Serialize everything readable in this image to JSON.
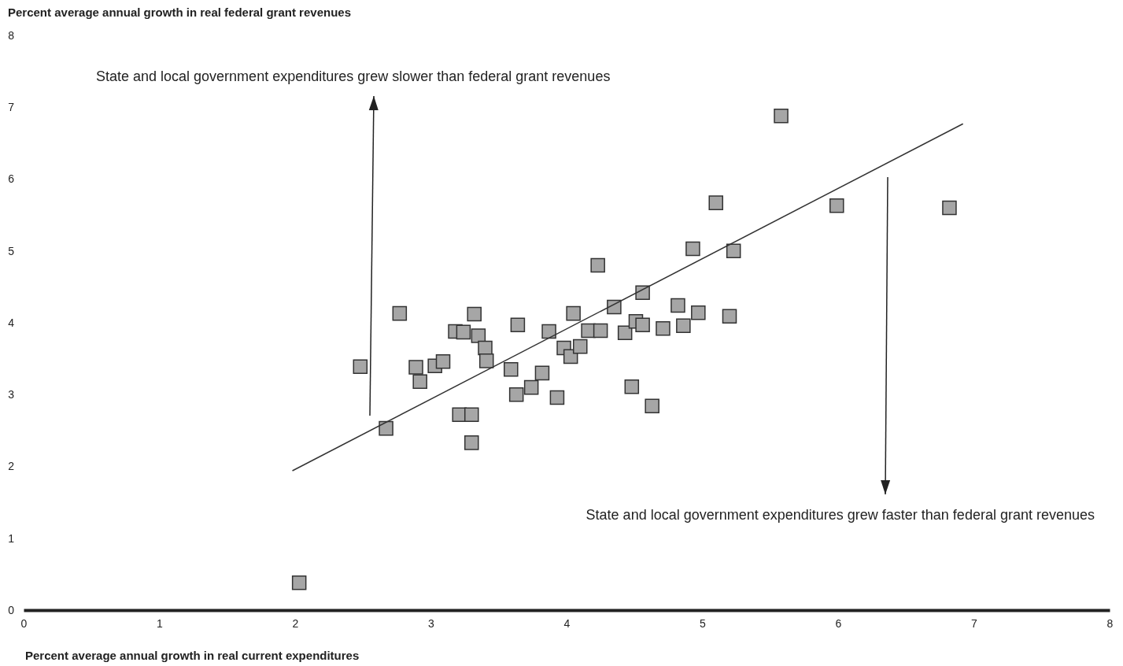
{
  "chart_data": {
    "type": "scatter",
    "xlabel": "Percent average annual growth in real current expenditures",
    "ylabel": "Percent average annual growth in real federal grant revenues",
    "xlim": [
      0,
      8
    ],
    "xticks": [
      0,
      1,
      2,
      3,
      4,
      5,
      6,
      7,
      8
    ],
    "ylim": [
      0,
      8
    ],
    "yticks": [
      0,
      1,
      2,
      3,
      4,
      5,
      6,
      7,
      8
    ],
    "grid": false,
    "annotations": [
      "State and local government expenditures grew slower than federal grant revenues",
      "State and local government expenditures grew faster than federal grant revenues"
    ],
    "series": [
      {
        "marker": "square",
        "color": "#a6a6a6",
        "x": [
          2.03,
          2.48,
          2.67,
          2.77,
          2.89,
          2.92,
          3.03,
          3.09,
          3.18,
          3.24,
          3.21,
          3.3,
          3.3,
          3.32,
          3.35,
          3.4,
          3.41,
          3.59,
          3.63,
          3.64,
          3.74,
          3.82,
          3.87,
          3.93,
          3.98,
          4.03,
          4.05,
          4.1,
          4.16,
          4.25,
          4.23,
          4.35,
          4.43,
          4.48,
          4.51,
          4.56,
          4.56,
          4.63,
          4.71,
          4.82,
          4.86,
          4.93,
          4.97,
          5.1,
          5.2,
          5.23,
          5.58,
          5.99,
          6.82
        ],
        "values": [
          0.38,
          3.39,
          2.53,
          4.13,
          3.38,
          3.18,
          3.4,
          3.46,
          3.88,
          3.87,
          2.72,
          2.72,
          2.33,
          4.12,
          3.82,
          3.65,
          3.47,
          3.35,
          3.0,
          3.97,
          3.1,
          3.3,
          3.88,
          2.96,
          3.65,
          3.53,
          4.13,
          3.67,
          3.89,
          3.89,
          4.8,
          4.22,
          3.86,
          3.11,
          4.02,
          3.97,
          4.42,
          2.84,
          3.92,
          4.24,
          3.96,
          5.03,
          4.14,
          5.67,
          4.09,
          5.0,
          6.88,
          5.63,
          5.6
        ]
      },
      {
        "type": "line",
        "color": "#333333",
        "x": [
          1.98,
          6.92
        ],
        "values": [
          1.94,
          6.77
        ]
      }
    ]
  }
}
